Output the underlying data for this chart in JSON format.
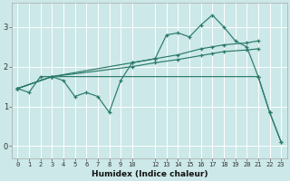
{
  "xlabel": "Humidex (Indice chaleur)",
  "background_color": "#cce8e8",
  "grid_color": "#ffffff",
  "line_color": "#2a7a6a",
  "xlim": [
    -0.5,
    23.5
  ],
  "ylim": [
    -0.3,
    3.6
  ],
  "xtick_vals": [
    0,
    1,
    2,
    3,
    4,
    5,
    6,
    7,
    8,
    9,
    10,
    12,
    13,
    14,
    15,
    16,
    17,
    18,
    19,
    20,
    21,
    22,
    23
  ],
  "xtick_labels": [
    "0",
    "1",
    "2",
    "3",
    "4",
    "5",
    "6",
    "7",
    "8",
    "9",
    "10",
    "12",
    "13",
    "14",
    "15",
    "16",
    "17",
    "18",
    "19",
    "20",
    "21",
    "22",
    "23"
  ],
  "yticks": [
    0,
    1,
    2,
    3
  ],
  "series": [
    {
      "x": [
        0,
        1,
        2,
        3,
        4,
        5,
        6,
        7,
        8,
        9,
        10,
        12,
        13,
        14,
        15,
        16,
        17,
        18,
        19,
        20,
        21,
        22,
        23
      ],
      "y": [
        1.45,
        1.35,
        1.75,
        1.75,
        1.65,
        1.25,
        1.35,
        1.25,
        0.85,
        1.65,
        2.1,
        2.2,
        2.8,
        2.85,
        2.75,
        3.05,
        3.3,
        3.0,
        2.65,
        2.5,
        1.75,
        0.85,
        0.1
      ]
    },
    {
      "x": [
        0,
        3,
        10,
        12,
        14,
        16,
        17,
        18,
        20,
        21
      ],
      "y": [
        1.45,
        1.75,
        2.1,
        2.2,
        2.3,
        2.45,
        2.5,
        2.55,
        2.6,
        2.65
      ]
    },
    {
      "x": [
        0,
        3,
        10,
        12,
        14,
        16,
        17,
        18,
        20,
        21
      ],
      "y": [
        1.45,
        1.75,
        2.0,
        2.1,
        2.18,
        2.28,
        2.33,
        2.38,
        2.42,
        2.45
      ]
    },
    {
      "x": [
        0,
        3,
        21,
        22,
        23
      ],
      "y": [
        1.45,
        1.75,
        1.75,
        0.85,
        0.1
      ]
    }
  ]
}
